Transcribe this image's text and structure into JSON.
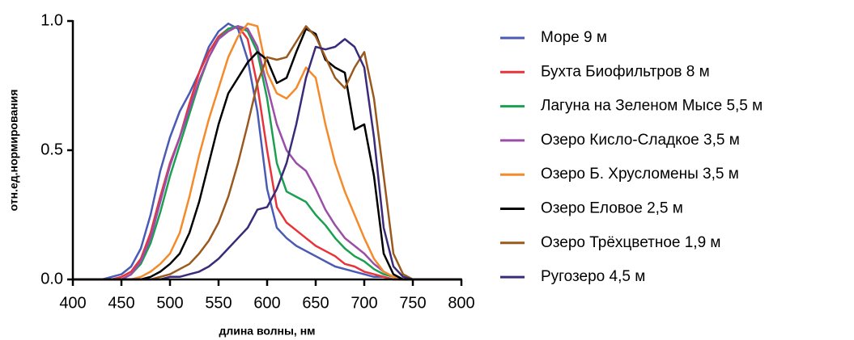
{
  "chart_data": {
    "type": "line",
    "xlabel": "длина волны, нм",
    "ylabel": "отн.ед.нормирования",
    "xlim": [
      400,
      800
    ],
    "ylim": [
      0,
      1
    ],
    "xticks": [
      400,
      450,
      500,
      550,
      600,
      650,
      700,
      750,
      800
    ],
    "yticks": [
      {
        "value": 0,
        "label": "0.0"
      },
      {
        "value": 0.5,
        "label": "0.5"
      },
      {
        "value": 1,
        "label": "1.0"
      }
    ],
    "x": [
      400,
      410,
      420,
      430,
      440,
      450,
      460,
      470,
      480,
      490,
      500,
      510,
      520,
      530,
      540,
      550,
      560,
      570,
      580,
      590,
      600,
      610,
      620,
      630,
      640,
      650,
      660,
      670,
      680,
      690,
      700,
      710,
      720,
      730,
      740,
      750,
      760,
      770,
      780,
      790,
      800
    ],
    "series": [
      {
        "name": "Море 9 м",
        "color": "#4a5bb5",
        "values": [
          0,
          0,
          0,
          0,
          0.01,
          0.02,
          0.05,
          0.12,
          0.25,
          0.42,
          0.55,
          0.65,
          0.72,
          0.8,
          0.9,
          0.96,
          0.99,
          0.97,
          0.85,
          0.65,
          0.35,
          0.2,
          0.16,
          0.13,
          0.11,
          0.09,
          0.07,
          0.05,
          0.04,
          0.03,
          0.02,
          0.01,
          0.01,
          0,
          0,
          0,
          0,
          0,
          0,
          0,
          0
        ]
      },
      {
        "name": "Бухта Биофильтров 8 м",
        "color": "#e8333a",
        "values": [
          0,
          0,
          0,
          0,
          0,
          0.01,
          0.03,
          0.08,
          0.18,
          0.32,
          0.45,
          0.55,
          0.68,
          0.8,
          0.88,
          0.94,
          0.97,
          0.98,
          0.93,
          0.75,
          0.5,
          0.28,
          0.22,
          0.19,
          0.16,
          0.13,
          0.11,
          0.09,
          0.06,
          0.05,
          0.03,
          0.02,
          0.01,
          0,
          0,
          0,
          0,
          0,
          0,
          0,
          0
        ]
      },
      {
        "name": "Лагуна на Зеленом Мысе 5,5 м",
        "color": "#1aa050",
        "values": [
          0,
          0,
          0,
          0,
          0,
          0,
          0.02,
          0.06,
          0.14,
          0.26,
          0.4,
          0.52,
          0.64,
          0.76,
          0.86,
          0.93,
          0.97,
          0.98,
          0.96,
          0.88,
          0.7,
          0.45,
          0.34,
          0.32,
          0.3,
          0.25,
          0.21,
          0.16,
          0.12,
          0.09,
          0.07,
          0.04,
          0.02,
          0.01,
          0,
          0,
          0,
          0,
          0,
          0,
          0
        ]
      },
      {
        "name": "Озеро Кисло-Сладкое 3,5 м",
        "color": "#9b4ea8",
        "values": [
          0,
          0,
          0,
          0,
          0,
          0,
          0.02,
          0.07,
          0.16,
          0.3,
          0.44,
          0.55,
          0.66,
          0.77,
          0.86,
          0.93,
          0.96,
          0.98,
          0.97,
          0.9,
          0.75,
          0.6,
          0.5,
          0.45,
          0.42,
          0.35,
          0.27,
          0.21,
          0.16,
          0.13,
          0.1,
          0.06,
          0.03,
          0.01,
          0,
          0,
          0,
          0,
          0,
          0,
          0
        ]
      },
      {
        "name": "Озеро Б. Хрусломены 3,5 м",
        "color": "#f58a2a",
        "values": [
          0,
          0,
          0,
          0,
          0,
          0,
          0,
          0.01,
          0.03,
          0.06,
          0.1,
          0.18,
          0.32,
          0.48,
          0.62,
          0.74,
          0.86,
          0.94,
          0.99,
          0.98,
          0.8,
          0.72,
          0.7,
          0.74,
          0.82,
          0.78,
          0.6,
          0.45,
          0.34,
          0.25,
          0.16,
          0.08,
          0.03,
          0.01,
          0,
          0,
          0,
          0,
          0,
          0,
          0
        ]
      },
      {
        "name": "Озеро Еловое 2,5 м",
        "color": "#000000",
        "values": [
          0,
          0,
          0,
          0,
          0,
          0,
          0,
          0,
          0.01,
          0.03,
          0.06,
          0.1,
          0.18,
          0.3,
          0.45,
          0.6,
          0.72,
          0.78,
          0.84,
          0.88,
          0.85,
          0.76,
          0.78,
          0.88,
          0.97,
          0.95,
          0.85,
          0.82,
          0.8,
          0.58,
          0.6,
          0.4,
          0.1,
          0.02,
          0,
          0,
          0,
          0,
          0,
          0,
          0
        ]
      },
      {
        "name": "Озеро Трёхцветное 1,9 м",
        "color": "#9a5a1e",
        "values": [
          0,
          0,
          0,
          0,
          0,
          0,
          0,
          0,
          0,
          0.01,
          0.02,
          0.04,
          0.06,
          0.1,
          0.15,
          0.22,
          0.32,
          0.45,
          0.6,
          0.76,
          0.86,
          0.85,
          0.86,
          0.92,
          0.98,
          0.94,
          0.86,
          0.78,
          0.74,
          0.82,
          0.88,
          0.7,
          0.4,
          0.1,
          0.02,
          0,
          0,
          0,
          0,
          0,
          0
        ]
      },
      {
        "name": "Ругозеро 4,5 м",
        "color": "#3a2a7a",
        "values": [
          0,
          0,
          0,
          0,
          0,
          0,
          0,
          0,
          0,
          0,
          0.01,
          0.01,
          0.02,
          0.03,
          0.05,
          0.08,
          0.12,
          0.16,
          0.2,
          0.27,
          0.28,
          0.35,
          0.45,
          0.6,
          0.78,
          0.9,
          0.89,
          0.9,
          0.93,
          0.9,
          0.82,
          0.55,
          0.2,
          0.05,
          0.01,
          0,
          0,
          0,
          0,
          0,
          0
        ]
      }
    ]
  }
}
